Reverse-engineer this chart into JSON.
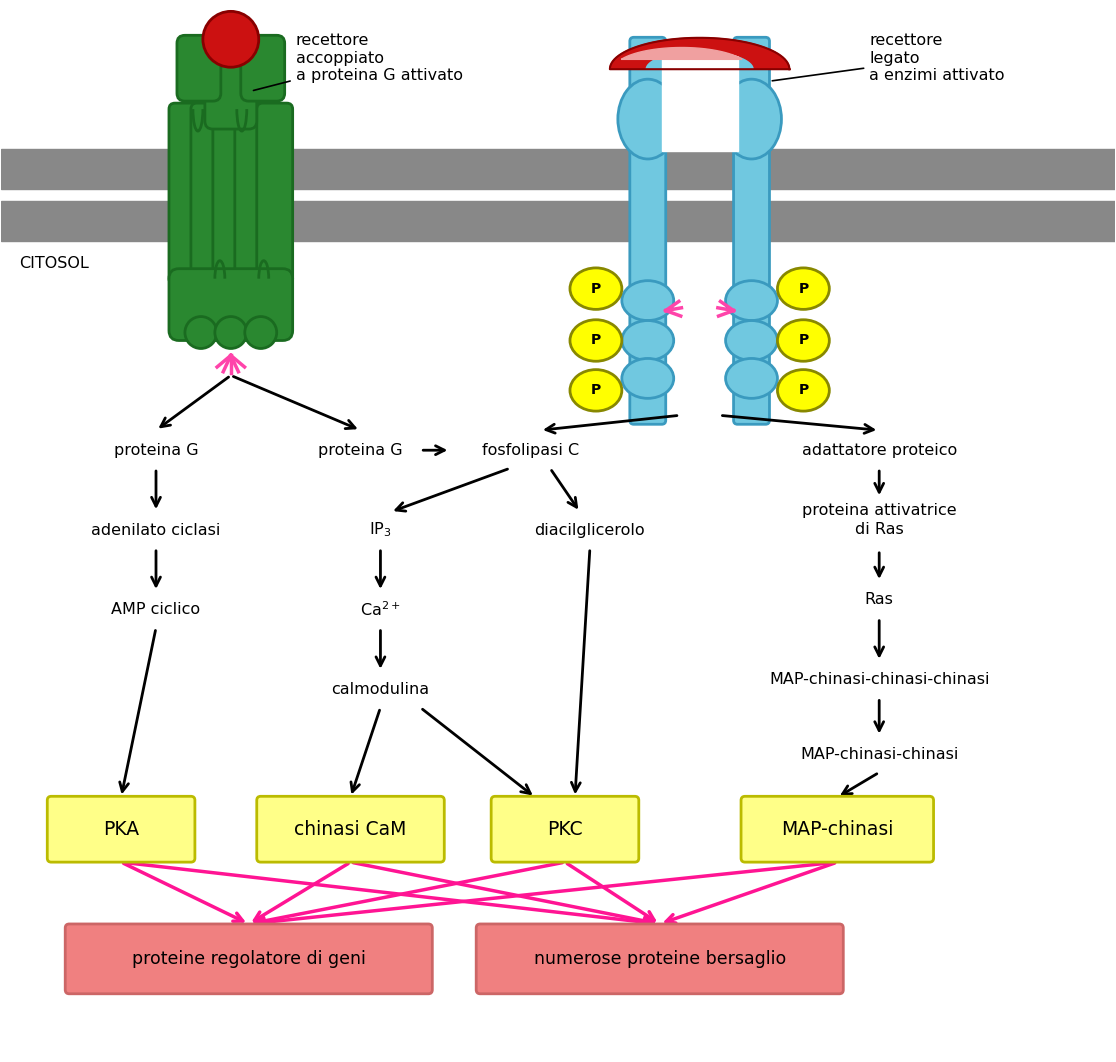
{
  "bg_color": "#ffffff",
  "membrane_color": "#888888",
  "citosol_label": "CITOSOL",
  "left_receptor_text": "recettore\naccoppiato\na proteina G attivato",
  "right_receptor_text": "recettore\nlegato\na enzimi attivato",
  "green_dark": "#1a6b20",
  "green_mid": "#2a8830",
  "red_ligand": "#cc1111",
  "rtk_color": "#70c8e0",
  "rtk_dark": "#3a9abf",
  "yellow_color": "#ffff88",
  "yellow_border": "#bbbb00",
  "pink_color": "#f08080",
  "pink_border": "#cc6666",
  "magenta_color": "#ff1493",
  "text_fontsize": 11.5
}
